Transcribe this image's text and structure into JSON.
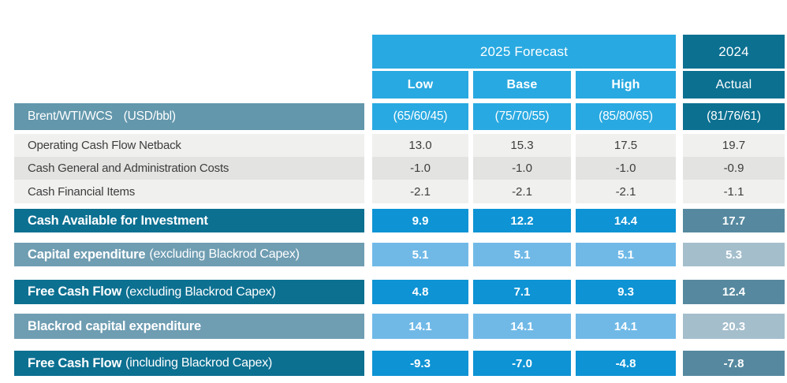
{
  "table": {
    "header": {
      "group_2025": "2025 Forecast",
      "group_2024": "2024",
      "col_low": "Low",
      "col_base": "Base",
      "col_high": "High",
      "col_actual": "Actual"
    },
    "price_row": {
      "label": "Brent/WTI/WCS",
      "unit": "(USD/bbl)",
      "values": [
        "(65/60/45)",
        "(75/70/55)",
        "(85/80/65)",
        "(81/76/61)"
      ]
    },
    "detail_rows": [
      {
        "label": "Operating Cash Flow Netback",
        "values": [
          "13.0",
          "15.3",
          "17.5",
          "19.7"
        ]
      },
      {
        "label": "Cash General and Administration Costs",
        "values": [
          "-1.0",
          "-1.0",
          "-1.0",
          "-0.9"
        ]
      },
      {
        "label": "Cash Financial Items",
        "values": [
          "-2.1",
          "-2.1",
          "-2.1",
          "-1.1"
        ]
      }
    ],
    "summary_rows": [
      {
        "label_bold": "Cash Available for Investment",
        "label_rest": "",
        "values": [
          "9.9",
          "12.2",
          "14.4",
          "17.7"
        ]
      },
      {
        "label_bold": "Capital expenditure",
        "label_rest": "(excluding  Blackrod Capex)",
        "values": [
          "5.1",
          "5.1",
          "5.1",
          "5.3"
        ]
      },
      {
        "label_bold": "Free Cash Flow",
        "label_rest": "(excluding Blackrod Capex)",
        "values": [
          "4.8",
          "7.1",
          "9.3",
          "12.4"
        ]
      },
      {
        "label_bold": "Blackrod capital expenditure",
        "label_rest": "",
        "values": [
          "14.1",
          "14.1",
          "14.1",
          "20.3"
        ]
      },
      {
        "label_bold": "Free Cash Flow",
        "label_rest": "(including Blackrod Capex)",
        "values": [
          "-9.3",
          "-7.0",
          "-4.8",
          "-7.8"
        ]
      }
    ]
  },
  "colors": {
    "bright_blue": "#29A9E1",
    "process_blue": "#0E93D4",
    "light_blue": "#70B9E7",
    "dark_teal": "#0C7091",
    "steel_blue": "#6297AC",
    "steel_blue_light": "#6F9DB2",
    "steel_cell_2024": "#56899F",
    "gray_blue_cell_2024": "#A4BECC",
    "row_gray_light": "#F0F0EF",
    "row_gray_dark": "#E3E3E2",
    "text_dark": "#3D3D3D"
  },
  "chart_data": {
    "type": "table",
    "title": "2025 Forecast vs 2024 Actual cash flow summary (USD)",
    "column_groups": [
      {
        "label": "2025 Forecast",
        "span": 3
      },
      {
        "label": "2024",
        "span": 1
      }
    ],
    "columns": [
      "Low",
      "Base",
      "High",
      "Actual"
    ],
    "rows": [
      {
        "label": "Brent/WTI/WCS (USD/bbl)",
        "values": [
          "(65/60/45)",
          "(75/70/55)",
          "(85/80/65)",
          "(81/76/61)"
        ]
      },
      {
        "label": "Operating Cash Flow Netback",
        "values": [
          13.0,
          15.3,
          17.5,
          19.7
        ]
      },
      {
        "label": "Cash General and Administration Costs",
        "values": [
          -1.0,
          -1.0,
          -1.0,
          -0.9
        ]
      },
      {
        "label": "Cash Financial Items",
        "values": [
          -2.1,
          -2.1,
          -2.1,
          -1.1
        ]
      },
      {
        "label": "Cash Available for Investment",
        "values": [
          9.9,
          12.2,
          14.4,
          17.7
        ]
      },
      {
        "label": "Capital expenditure (excluding Blackrod Capex)",
        "values": [
          5.1,
          5.1,
          5.1,
          5.3
        ]
      },
      {
        "label": "Free Cash Flow (excluding Blackrod Capex)",
        "values": [
          4.8,
          7.1,
          9.3,
          12.4
        ]
      },
      {
        "label": "Blackrod capital expenditure",
        "values": [
          14.1,
          14.1,
          14.1,
          20.3
        ]
      },
      {
        "label": "Free Cash Flow (including Blackrod Capex)",
        "values": [
          -9.3,
          -7.0,
          -4.8,
          -7.8
        ]
      }
    ]
  }
}
